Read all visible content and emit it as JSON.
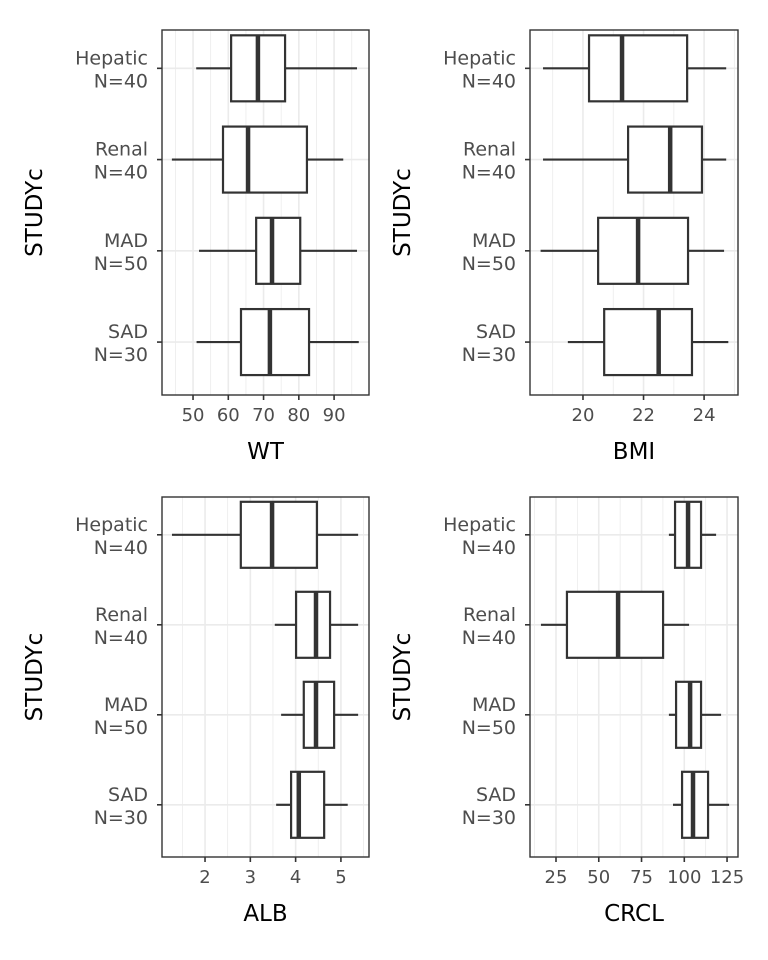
{
  "chart_data": [
    {
      "type": "boxplot",
      "xlabel": "WT",
      "ylabel": "STUDYc",
      "xlim": [
        41.2,
        99.9
      ],
      "xticks": [
        50,
        60,
        70,
        80,
        90
      ],
      "grid": true,
      "categories": [
        [
          "Hepatic",
          "N=40"
        ],
        [
          "Renal",
          "N=40"
        ],
        [
          "MAD",
          "N=50"
        ],
        [
          "SAD",
          "N=30"
        ]
      ],
      "boxes": [
        [
          50.9,
          60.8,
          68.4,
          76.1,
          96.5
        ],
        [
          44,
          58.5,
          65.6,
          82.3,
          92.6
        ],
        [
          51.7,
          67.9,
          72.4,
          80.4,
          96.5
        ],
        [
          51,
          63.6,
          71.8,
          82.9,
          97
        ]
      ]
    },
    {
      "type": "boxplot",
      "xlabel": "BMI",
      "ylabel": "STUDYc",
      "xlim": [
        18.25,
        25.12
      ],
      "xticks": [
        20,
        22,
        24
      ],
      "grid": true,
      "categories": [
        [
          "Hepatic",
          "N=40"
        ],
        [
          "Renal",
          "N=40"
        ],
        [
          "MAD",
          "N=50"
        ],
        [
          "SAD",
          "N=30"
        ]
      ],
      "boxes": [
        [
          18.68,
          20.2,
          21.29,
          23.44,
          24.73
        ],
        [
          18.68,
          21.49,
          22.88,
          23.93,
          24.73
        ],
        [
          18.6,
          20.5,
          21.82,
          23.47,
          24.66
        ],
        [
          19.5,
          20.7,
          22.5,
          23.6,
          24.8
        ]
      ]
    },
    {
      "type": "boxplot",
      "xlabel": "ALB",
      "ylabel": "STUDYc",
      "xlim": [
        1.05,
        5.62
      ],
      "xticks": [
        2,
        3,
        4,
        5
      ],
      "grid": true,
      "categories": [
        [
          "Hepatic",
          "N=40"
        ],
        [
          "Renal",
          "N=40"
        ],
        [
          "MAD",
          "N=50"
        ],
        [
          "SAD",
          "N=30"
        ]
      ],
      "boxes": [
        [
          1.27,
          2.79,
          3.48,
          4.47,
          5.38
        ],
        [
          3.54,
          4.01,
          4.45,
          4.76,
          5.38
        ],
        [
          3.68,
          4.18,
          4.45,
          4.85,
          5.38
        ],
        [
          3.57,
          3.9,
          4.07,
          4.63,
          5.15
        ]
      ]
    },
    {
      "type": "boxplot",
      "xlabel": "CRCL",
      "ylabel": "STUDYc",
      "xlim": [
        9.8,
        131.4
      ],
      "xticks": [
        25,
        50,
        75,
        100,
        125
      ],
      "grid": true,
      "categories": [
        [
          "Hepatic",
          "N=40"
        ],
        [
          "Renal",
          "N=40"
        ],
        [
          "MAD",
          "N=50"
        ],
        [
          "SAD",
          "N=30"
        ]
      ],
      "boxes": [
        [
          91,
          94.6,
          102.2,
          109.8,
          118.6
        ],
        [
          16.2,
          31.4,
          61.3,
          87.6,
          102.8
        ],
        [
          91,
          95.2,
          103.4,
          109.8,
          121.5
        ],
        [
          93.4,
          98.7,
          105.1,
          113.9,
          126.2
        ]
      ]
    }
  ],
  "box_format": [
    "min",
    "q1",
    "median",
    "q3",
    "max"
  ]
}
